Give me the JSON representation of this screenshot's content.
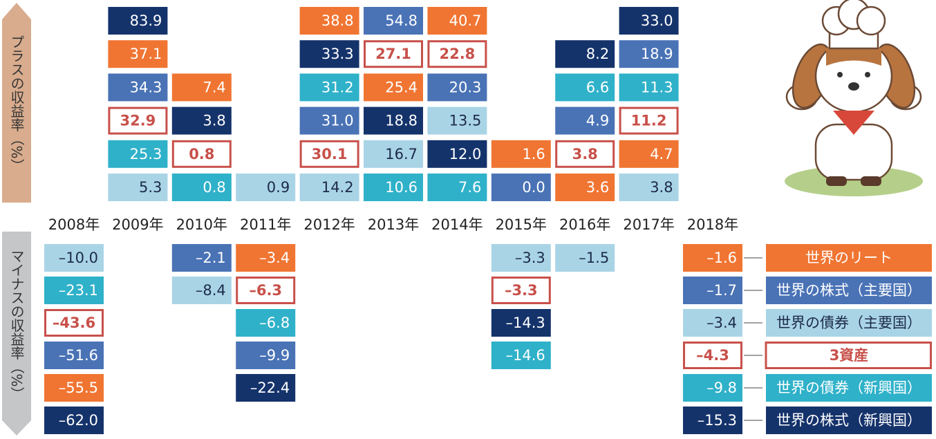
{
  "chart_data": {
    "type": "quilt",
    "y_label_positive": "プラスの収益率（%）",
    "y_label_negative": "マイナスの収益率（%）",
    "categories": [
      "2008年",
      "2009年",
      "2010年",
      "2011年",
      "2012年",
      "2013年",
      "2014年",
      "2015年",
      "2016年",
      "2017年",
      "2018年"
    ],
    "series": [
      {
        "name": "世界のリート",
        "color": "#f07532",
        "values": [
          -55.5,
          37.1,
          7.4,
          -3.4,
          38.8,
          25.4,
          40.7,
          1.6,
          3.6,
          4.7,
          -1.6
        ],
        "value_labels": [
          "–55.5",
          "37.1",
          "7.4",
          "–3.4",
          "38.8",
          "25.4",
          "40.7",
          "1.6",
          "3.6",
          "4.7",
          "–1.6"
        ]
      },
      {
        "name": "世界の株式（主要国）",
        "color": "#4a73b6",
        "values": [
          -51.6,
          34.3,
          -2.1,
          -9.9,
          31.0,
          54.8,
          20.3,
          0.0,
          4.9,
          18.9,
          -1.7
        ],
        "value_labels": [
          "–51.6",
          "34.3",
          "–2.1",
          "–9.9",
          "31.0",
          "54.8",
          "20.3",
          "0.0",
          "4.9",
          "18.9",
          "–1.7"
        ]
      },
      {
        "name": "世界の債券（主要国）",
        "color": "#a9d4e6",
        "values": [
          -10.0,
          5.3,
          -8.4,
          0.9,
          14.2,
          16.7,
          13.5,
          -3.3,
          -1.5,
          3.8,
          -3.4
        ],
        "value_labels": [
          "–10.0",
          "5.3",
          "–8.4",
          "0.9",
          "14.2",
          "16.7",
          "13.5",
          "–3.3",
          "–1.5",
          "3.8",
          "–3.4"
        ]
      },
      {
        "name": "3資産",
        "color": "#c8504a",
        "style": "outline",
        "values": [
          -43.6,
          32.9,
          0.8,
          -6.3,
          30.1,
          27.1,
          22.8,
          -3.3,
          3.8,
          11.2,
          -4.3
        ],
        "value_labels": [
          "–43.6",
          "32.9",
          "0.8",
          "–6.3",
          "30.1",
          "27.1",
          "22.8",
          "–3.3",
          "3.8",
          "11.2",
          "–4.3"
        ]
      },
      {
        "name": "世界の債券（新興国）",
        "color": "#2fb1c9",
        "values": [
          -23.1,
          25.3,
          0.8,
          -6.8,
          31.2,
          10.6,
          7.6,
          -14.6,
          6.6,
          11.3,
          -9.8
        ],
        "value_labels": [
          "–23.1",
          "25.3",
          "0.8",
          "–6.8",
          "31.2",
          "10.6",
          "7.6",
          "–14.6",
          "6.6",
          "11.3",
          "–9.8"
        ]
      },
      {
        "name": "世界の株式（新興国）",
        "color": "#15336b",
        "values": [
          -62.0,
          83.9,
          3.8,
          -22.4,
          33.3,
          18.8,
          12.0,
          -14.3,
          8.2,
          33.0,
          -15.3
        ],
        "value_labels": [
          "–62.0",
          "83.9",
          "3.8",
          "–22.4",
          "33.3",
          "18.8",
          "12.0",
          "–14.3",
          "8.2",
          "33.0",
          "–15.3"
        ]
      }
    ]
  }
}
